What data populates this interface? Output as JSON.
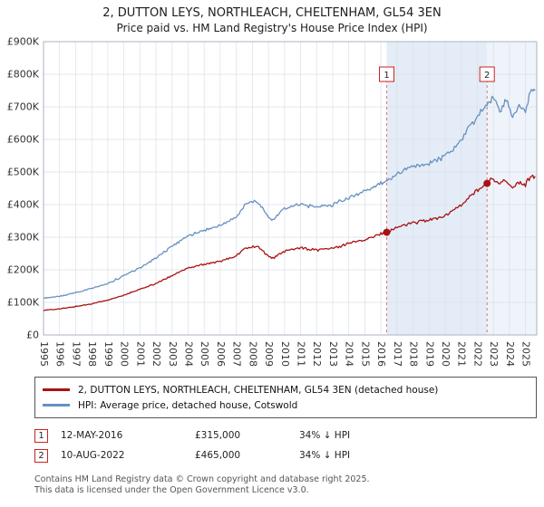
{
  "chart_data": {
    "type": "line",
    "title": "2, DUTTON LEYS, NORTHLEACH, CHELTENHAM, GL54 3EN",
    "subtitle": "Price paid vs. HM Land Registry's House Price Index (HPI)",
    "legend_position": "bottom",
    "xlim": [
      1995,
      2025.7
    ],
    "ylim": [
      0,
      900000
    ],
    "y_tick_step": 100000,
    "y_ticks": [
      "£0",
      "£100K",
      "£200K",
      "£300K",
      "£400K",
      "£500K",
      "£600K",
      "£700K",
      "£800K",
      "£900K"
    ],
    "x_years": [
      1995,
      1996,
      1997,
      1998,
      1999,
      2000,
      2001,
      2002,
      2003,
      2004,
      2005,
      2006,
      2007,
      2008,
      2009,
      2010,
      2011,
      2012,
      2013,
      2014,
      2015,
      2016,
      2017,
      2018,
      2019,
      2020,
      2021,
      2022,
      2023,
      2024,
      2025
    ],
    "grid_color": "#d9dfe8",
    "border_color": "#aab3c0",
    "axis_text_color": "#333333",
    "sale_line_color": "#dd7777",
    "sale_box_border_color": "#cc2222",
    "shading": {
      "between": {
        "from": 2016.36,
        "to": 2022.61,
        "color": "#e4edf7"
      },
      "after": {
        "from": 2022.61,
        "color": "#eff4fa"
      }
    },
    "anchors_x": [
      1995,
      1996,
      1997,
      1998,
      1999,
      2000,
      2001,
      2002,
      2003,
      2004,
      2005,
      2006,
      2007,
      2007.6,
      2008.3,
      2009.2,
      2010,
      2011,
      2012,
      2013,
      2014,
      2015,
      2016,
      2016.4,
      2017,
      2018,
      2019,
      2020,
      2021,
      2021.7,
      2022.3,
      2022.6,
      2023,
      2023.4,
      2023.8,
      2024.2,
      2024.6,
      2025,
      2025.3,
      2025.6
    ],
    "series": [
      {
        "id": "price-paid-line",
        "name": "2, DUTTON LEYS, NORTHLEACH, CHELTENHAM, GL54 3EN (detached house)",
        "color": "#aa1111",
        "units": "GBP thousands",
        "values_k": [
          76,
          80,
          87,
          96,
          107,
          122,
          140,
          158,
          183,
          205,
          218,
          226,
          243,
          268,
          272,
          233,
          257,
          266,
          261,
          266,
          281,
          294,
          310,
          315,
          330,
          345,
          352,
          365,
          398,
          430,
          455,
          465,
          480,
          462,
          475,
          452,
          470,
          460,
          485,
          487
        ]
      },
      {
        "id": "hpi-line",
        "name": "HPI: Average price, detached house, Cotswold",
        "color": "#6890c0",
        "units": "GBP thousands",
        "values_k": [
          113,
          118,
          130,
          143,
          158,
          182,
          205,
          235,
          272,
          305,
          322,
          335,
          362,
          405,
          412,
          350,
          390,
          400,
          392,
          400,
          422,
          443,
          465,
          475,
          495,
          518,
          527,
          548,
          598,
          650,
          690,
          705,
          730,
          690,
          720,
          670,
          700,
          690,
          740,
          750
        ]
      }
    ],
    "sale_markers": [
      {
        "label": "1",
        "x": 2016.36,
        "value_k": 315
      },
      {
        "label": "2",
        "x": 2022.61,
        "value_k": 465
      }
    ]
  },
  "transactions": [
    {
      "num": "1",
      "date": "12-MAY-2016",
      "price": "£315,000",
      "hpi": "34% ↓ HPI"
    },
    {
      "num": "2",
      "date": "10-AUG-2022",
      "price": "£465,000",
      "hpi": "34% ↓ HPI"
    }
  ],
  "footer": {
    "line1": "Contains HM Land Registry data © Crown copyright and database right 2025.",
    "line2": "This data is licensed under the Open Government Licence v3.0."
  }
}
